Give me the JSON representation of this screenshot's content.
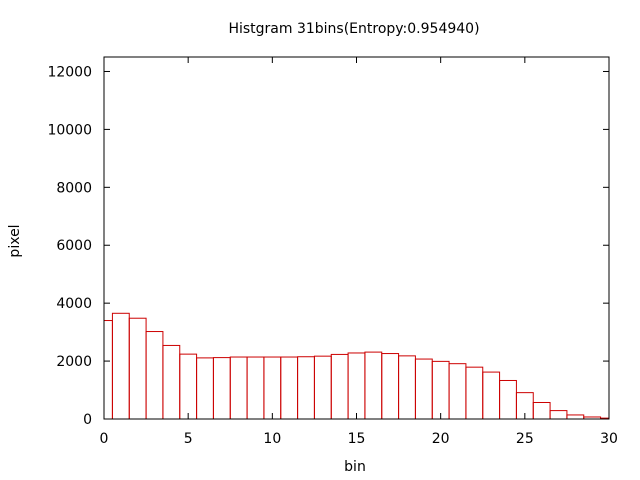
{
  "chart_data": {
    "type": "bar",
    "title": "Histgram 31bins(Entropy:0.954940)",
    "xlabel": "bin",
    "ylabel": "pixel",
    "xlim": [
      0,
      30
    ],
    "ylim": [
      0,
      12500
    ],
    "xticks": [
      0,
      5,
      10,
      15,
      20,
      25,
      30
    ],
    "yticks": [
      0,
      2000,
      4000,
      6000,
      8000,
      10000,
      12000
    ],
    "grid": false,
    "legend": "none",
    "bar_color": "#cc0000",
    "x": [
      0,
      1,
      2,
      3,
      4,
      5,
      6,
      7,
      8,
      9,
      10,
      11,
      12,
      13,
      14,
      15,
      16,
      17,
      18,
      19,
      20,
      21,
      22,
      23,
      24,
      25,
      26,
      27,
      28,
      29,
      30
    ],
    "values": [
      3400,
      3650,
      3480,
      3020,
      2540,
      2240,
      2110,
      2120,
      2140,
      2140,
      2140,
      2140,
      2150,
      2170,
      2230,
      2280,
      2310,
      2260,
      2180,
      2070,
      1990,
      1910,
      1790,
      1620,
      1330,
      910,
      570,
      290,
      140,
      70,
      30
    ]
  }
}
